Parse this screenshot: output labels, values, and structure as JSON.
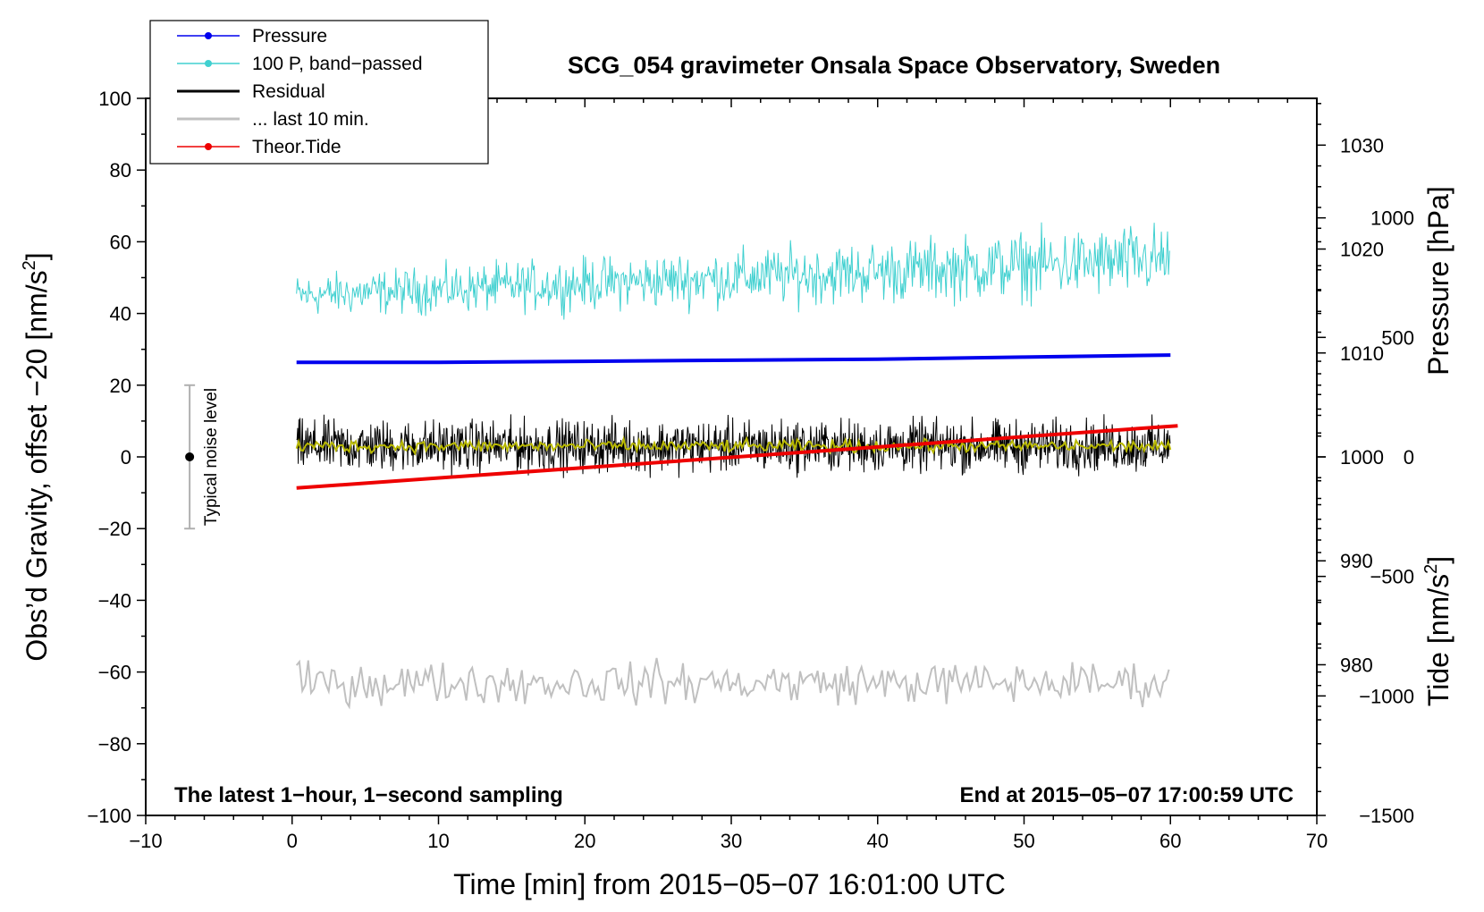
{
  "chart_data": {
    "type": "line",
    "title": "SCG_054 gravimeter Onsala Space Observatory, Sweden",
    "xlabel": "Time [min] from 2015−05−07 16:01:00 UTC",
    "ylabel_left_base": "Obs’d Gravity, offset −20 [nm/s",
    "ylabel_left_sup": "2",
    "ylabel_left_end": "]",
    "ylabel_right_pressure": "Pressure [hPa]",
    "ylabel_right_tide_base": "Tide [nm/s",
    "ylabel_right_tide_sup": "2",
    "ylabel_right_tide_end": "]",
    "xlim": [
      -10,
      70
    ],
    "ylim": [
      -100,
      100
    ],
    "pressure_axis_range": [
      965.5,
      1034.5
    ],
    "tide_axis_range": [
      -1500,
      1500
    ],
    "x_ticks": [
      "−10",
      "0",
      "10",
      "20",
      "30",
      "40",
      "50",
      "60",
      "70"
    ],
    "y_ticks": [
      "−100",
      "−80",
      "−60",
      "−40",
      "−20",
      "0",
      "20",
      "40",
      "60",
      "80",
      "100"
    ],
    "pressure_ticks": [
      "980",
      "990",
      "1000",
      "1010",
      "1020",
      "1030"
    ],
    "tide_ticks": [
      "−1500",
      "−1000",
      "−500",
      "0",
      "500",
      "1000"
    ],
    "legend_position": "top-left",
    "legend": [
      {
        "label": "Pressure",
        "color": "#0000ee",
        "marker": true
      },
      {
        "label": "100 P, band−passed",
        "color": "#40d0d0",
        "marker": true
      },
      {
        "label": "Residual",
        "color": "#000000",
        "marker": false
      },
      {
        "label": "... last 10 min.",
        "color": "#c0c0c0",
        "marker": false
      },
      {
        "label": "Theor.Tide",
        "color": "#ee0000",
        "marker": true
      }
    ],
    "series": [
      {
        "name": "Pressure",
        "color": "#0000ee",
        "axis": "pressure",
        "x": [
          0.3,
          10,
          20,
          30,
          40,
          50,
          60
        ],
        "values": [
          1009.1,
          1009.1,
          1009.2,
          1009.3,
          1009.4,
          1009.6,
          1009.8
        ]
      },
      {
        "name": "100 P, band−passed",
        "color": "#40d0d0",
        "axis": "left",
        "x_range": [
          0.3,
          60
        ],
        "center_start": 45,
        "center_end": 55,
        "amplitude": 5
      },
      {
        "name": "Residual",
        "color": "#000000",
        "axis": "left",
        "x_range": [
          0.3,
          60
        ],
        "center": 3,
        "amplitude": 5
      },
      {
        "name": "Residual smoothed",
        "color": "#b8b800",
        "axis": "left",
        "x_range": [
          0.3,
          60
        ],
        "center": 3,
        "amplitude": 1.2
      },
      {
        "name": "... last 10 min.",
        "color": "#c0c0c0",
        "axis": "left",
        "x_range": [
          0.3,
          60
        ],
        "center": -63,
        "amplitude": 4
      },
      {
        "name": "Theor.Tide",
        "color": "#ee0000",
        "axis": "tide",
        "x": [
          0.3,
          60.5
        ],
        "values": [
          -130,
          130
        ]
      }
    ],
    "noise_bar": {
      "label": "Typical noise level",
      "x": -7,
      "center": 0,
      "half_range": 20
    },
    "annotations": {
      "bottom_left": "The latest 1−hour, 1−second sampling",
      "bottom_right": "End at 2015−05−07 17:00:59 UTC"
    }
  }
}
